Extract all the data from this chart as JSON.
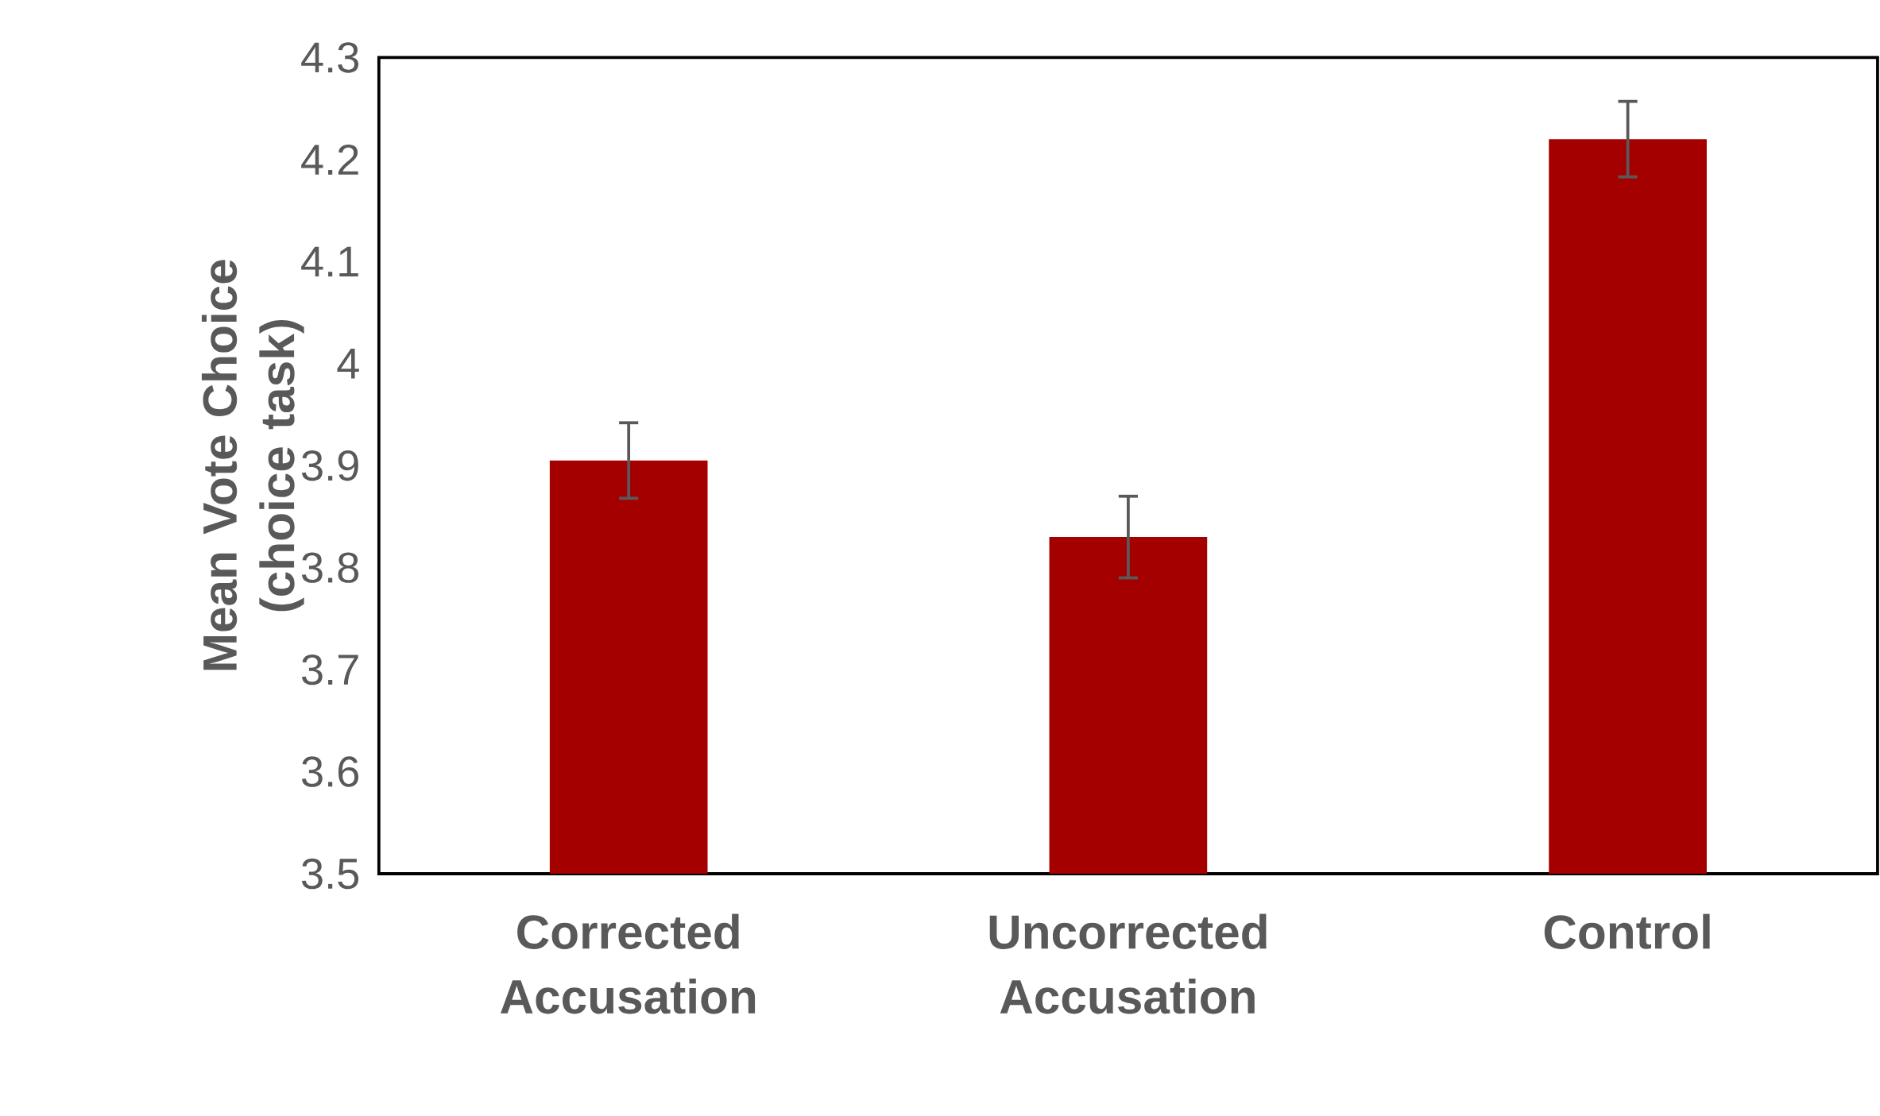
{
  "chart_data": {
    "type": "bar",
    "ylabel": "Mean Vote Choice (choice task)",
    "categories": [
      "Corrected Accusation",
      "Uncorrected Accusation",
      "Control"
    ],
    "values": [
      3.905,
      3.83,
      4.22
    ],
    "errors": [
      0.037,
      0.04,
      0.037
    ],
    "color": "#a50000",
    "ylim": [
      3.5,
      4.3
    ],
    "yticks": [
      3.5,
      3.6,
      3.7,
      3.8,
      3.9,
      4,
      4.1,
      4.2,
      4.3
    ],
    "grid": false
  }
}
